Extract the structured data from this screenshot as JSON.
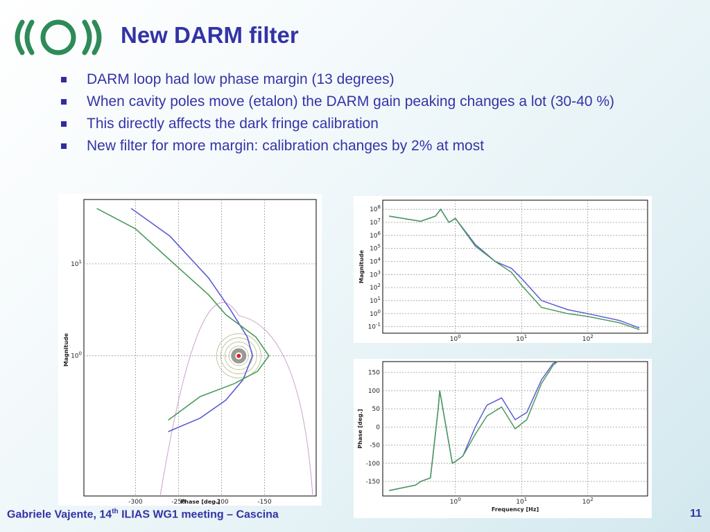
{
  "slide": {
    "title": "New DARM filter",
    "bullets": [
      "DARM loop had low phase margin (13 degrees)",
      "When cavity poles move (etalon) the DARM gain peaking changes a lot (30-40 %)",
      "This directly affects the dark fringe calibration",
      "New filter for more margin: calibration changes by 2% at most"
    ],
    "footer": {
      "prefix": "Gabriele Vajente, 14",
      "superscript": "th",
      "suffix": " ILIAS WG1 meeting – Cascina"
    },
    "page_number": "11",
    "colors": {
      "title": "#3333a6",
      "logo": "#2e8b57",
      "series_blue": "#5b5bd6",
      "series_green": "#4a9a5a"
    }
  },
  "chart_data": [
    {
      "type": "line",
      "subtype": "nichols",
      "xlabel": "Phase [deg.]",
      "ylabel": "Magnitude",
      "xlim": [
        -360,
        -90
      ],
      "x_ticks": [
        -300,
        -250,
        -200,
        -150
      ],
      "y_scale": "log",
      "y_ticks": [
        "10^1",
        "10^0"
      ],
      "grid": true,
      "series": [
        {
          "color": "blue",
          "points": [
            [
              -305,
              40
            ],
            [
              -260,
              20
            ],
            [
              -215,
              7
            ],
            [
              -190,
              3.2
            ],
            [
              -170,
              1.6
            ],
            [
              -164,
              1.0
            ],
            [
              -175,
              0.55
            ],
            [
              -195,
              0.33
            ],
            [
              -225,
              0.21
            ],
            [
              -262,
              0.15
            ]
          ]
        },
        {
          "color": "green",
          "points": [
            [
              -345,
              40
            ],
            [
              -300,
              24
            ],
            [
              -260,
              11
            ],
            [
              -215,
              4.6
            ],
            [
              -195,
              2.8
            ],
            [
              -160,
              1.6
            ],
            [
              -145,
              1.0
            ],
            [
              -158,
              0.68
            ],
            [
              -185,
              0.5
            ],
            [
              -225,
              0.36
            ],
            [
              -262,
              0.2
            ]
          ]
        }
      ]
    },
    {
      "type": "line",
      "subtype": "bode-magnitude",
      "xlabel": "",
      "ylabel": "Magnitude",
      "x_scale": "log",
      "x_ticks": [
        "10^0",
        "10^1",
        "10^2"
      ],
      "y_scale": "log",
      "y_ticks": [
        "10^8",
        "10^7",
        "10^6",
        "10^5",
        "10^4",
        "10^3",
        "10^2",
        "10^1",
        "10^0",
        "10^-1"
      ],
      "grid": true,
      "series": [
        {
          "color": "blue",
          "x": [
            0.1,
            0.3,
            0.5,
            0.6,
            0.8,
            1.0,
            2,
            4,
            7,
            10,
            20,
            50,
            100,
            300,
            600
          ],
          "y": [
            30000000,
            12000000,
            30000000,
            100000000,
            10000000,
            20000000,
            200000,
            10000,
            3000,
            500,
            10,
            2,
            1,
            0.3,
            0.08
          ]
        },
        {
          "color": "green",
          "x": [
            0.1,
            0.3,
            0.5,
            0.6,
            0.8,
            1.0,
            2,
            4,
            7,
            10,
            20,
            50,
            100,
            300,
            600
          ],
          "y": [
            30000000,
            12000000,
            30000000,
            100000000,
            10000000,
            20000000,
            150000,
            10000,
            1500,
            150,
            3,
            1,
            0.6,
            0.2,
            0.06
          ]
        }
      ]
    },
    {
      "type": "line",
      "subtype": "bode-phase",
      "xlabel": "Frequency [Hz]",
      "ylabel": "Phase [deg.]",
      "x_scale": "log",
      "x_ticks": [
        "10^0",
        "10^1",
        "10^2"
      ],
      "y_ticks": [
        150,
        100,
        50,
        0,
        -50,
        -100,
        -150
      ],
      "ylim": [
        -190,
        180
      ],
      "grid": true,
      "series": [
        {
          "color": "blue",
          "x": [
            0.1,
            0.25,
            0.3,
            0.42,
            0.55,
            0.58,
            0.9,
            1.0,
            1.3,
            2,
            3,
            5,
            8,
            12,
            20,
            30,
            35
          ],
          "y": [
            -175,
            -160,
            -150,
            -140,
            50,
            100,
            -100,
            -95,
            -80,
            0,
            60,
            80,
            20,
            40,
            130,
            175,
            180
          ]
        },
        {
          "color": "green",
          "x": [
            0.1,
            0.25,
            0.3,
            0.42,
            0.55,
            0.58,
            0.9,
            1.0,
            1.3,
            2,
            3,
            5,
            8,
            12,
            20,
            30,
            35
          ],
          "y": [
            -175,
            -160,
            -150,
            -140,
            50,
            100,
            -100,
            -95,
            -80,
            -20,
            30,
            55,
            -5,
            20,
            120,
            170,
            180
          ]
        }
      ]
    }
  ]
}
